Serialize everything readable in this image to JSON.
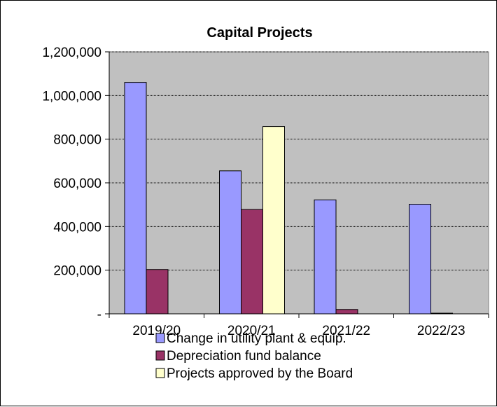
{
  "chart_data": {
    "type": "bar",
    "title": "Capital Projects",
    "xlabel": "",
    "ylabel": "",
    "categories": [
      "2019/20",
      "2020/21",
      "2021/22",
      "2022/23"
    ],
    "series": [
      {
        "name": "Change in utility plant & equip.",
        "color": "#9999ff",
        "values": [
          1060000,
          655000,
          522000,
          502000
        ]
      },
      {
        "name": "Depreciation fund balance",
        "color": "#993366",
        "values": [
          203000,
          478000,
          20000,
          3000
        ]
      },
      {
        "name": "Projects approved by the Board",
        "color": "#ffffcc",
        "values": [
          0,
          858000,
          0,
          0
        ]
      }
    ],
    "ylim": [
      0,
      1200000
    ],
    "yticks": [
      0,
      200000,
      400000,
      600000,
      800000,
      1000000,
      1200000
    ],
    "ytick_labels": [
      "-",
      "200,000",
      "400,000",
      "600,000",
      "800,000",
      "1,000,000",
      "1,200,000"
    ],
    "grid": true,
    "plot_background": "#c0c0c0",
    "legend_position": "bottom"
  }
}
